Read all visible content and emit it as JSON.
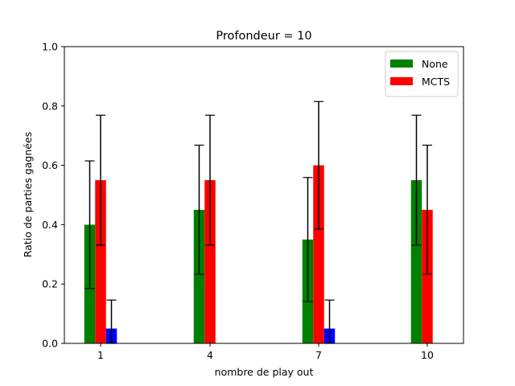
{
  "chart_data": {
    "type": "bar",
    "title": "Profondeur = 10",
    "xlabel": "nombre de play out",
    "ylabel": "Ratio de parties gagnées",
    "categories": [
      "1",
      "4",
      "7",
      "10"
    ],
    "ylim": [
      0,
      1.0
    ],
    "yticks": [
      "0.0",
      "0.2",
      "0.4",
      "0.6",
      "0.8",
      "1.0"
    ],
    "grid": false,
    "legend_position": "top-right",
    "series": [
      {
        "name": "None",
        "color": "#008000",
        "values": [
          0.4,
          0.45,
          0.35,
          0.55
        ],
        "error_low": [
          0.185,
          0.233,
          0.141,
          0.331
        ],
        "error_high": [
          0.615,
          0.668,
          0.559,
          0.769
        ]
      },
      {
        "name": "MCTS",
        "color": "#ff0000",
        "values": [
          0.55,
          0.55,
          0.6,
          0.45
        ],
        "error_low": [
          0.331,
          0.331,
          0.385,
          0.233
        ],
        "error_high": [
          0.769,
          0.769,
          0.815,
          0.668
        ]
      },
      {
        "color": "#0000ff",
        "values": [
          0.05,
          0.0,
          0.05,
          0.0
        ],
        "error_low": [
          0.0,
          0.0,
          0.0,
          0.0
        ],
        "error_high": [
          0.146,
          0.0,
          0.146,
          0.0
        ]
      }
    ]
  }
}
